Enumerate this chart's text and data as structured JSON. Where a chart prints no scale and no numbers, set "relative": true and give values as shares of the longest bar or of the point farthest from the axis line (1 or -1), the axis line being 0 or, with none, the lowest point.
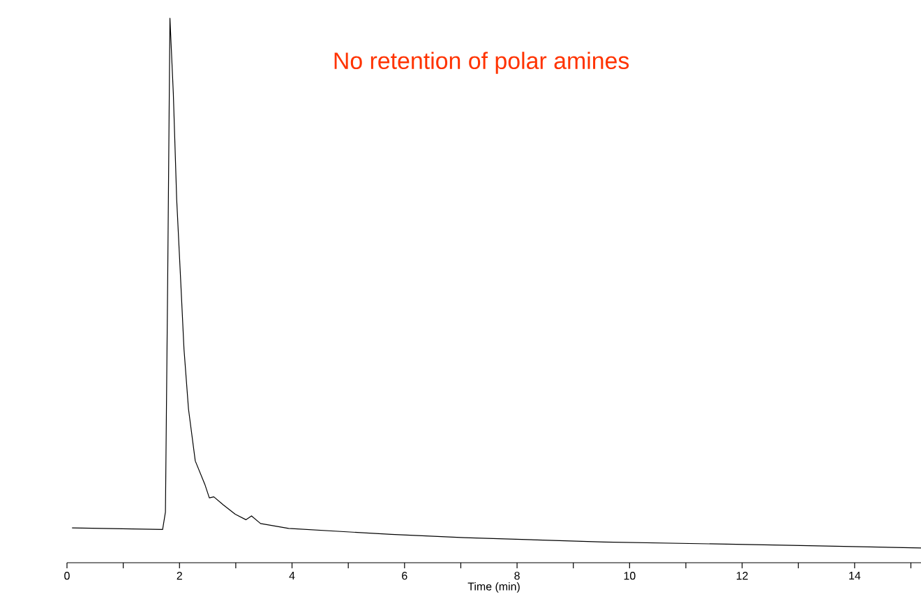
{
  "chart_data": {
    "type": "line",
    "relative": true,
    "xlabel": "Time (min)",
    "annotations": [
      "No retention of polar amines"
    ],
    "xlim": [
      0,
      15.18
    ],
    "xticks": [
      0,
      {
        "value": 1,
        "label": null
      },
      2,
      {
        "value": 3,
        "label": null
      },
      4,
      {
        "value": 5,
        "label": null
      },
      6,
      {
        "value": 7,
        "label": null
      },
      8,
      {
        "value": 9,
        "label": null
      },
      10,
      {
        "value": 11,
        "label": null
      },
      12,
      {
        "value": 13,
        "label": null
      },
      14,
      {
        "value": 15,
        "label": null
      }
    ],
    "series": [
      {
        "color": "#000000",
        "x": [
          0.09,
          1.7,
          1.75,
          1.79,
          1.83,
          1.89,
          1.95,
          2.02,
          2.08,
          2.16,
          2.28,
          2.45,
          2.53,
          2.61,
          2.78,
          2.99,
          3.18,
          3.28,
          3.44,
          3.94,
          5.76,
          7.07,
          9.55,
          12.88,
          15.18
        ],
        "values": [
          0.064,
          0.061,
          0.093,
          0.52,
          1.0,
          0.862,
          0.667,
          0.52,
          0.392,
          0.282,
          0.187,
          0.144,
          0.119,
          0.121,
          0.106,
          0.089,
          0.079,
          0.086,
          0.072,
          0.063,
          0.052,
          0.046,
          0.038,
          0.032,
          0.027
        ]
      }
    ]
  }
}
